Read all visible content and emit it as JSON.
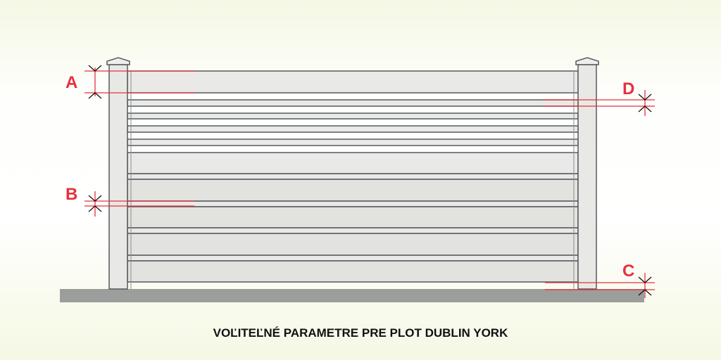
{
  "caption": "VOĽITEĽNÉ PARAMETRE PRE PLOT DUBLIN YORK",
  "labels": {
    "a": "A",
    "b": "B",
    "c": "C",
    "d": "D"
  },
  "colors": {
    "dimension": "#e8303c",
    "board": "#e9e9e7",
    "outline": "#555a5e",
    "ground": "#9c9e9b"
  }
}
